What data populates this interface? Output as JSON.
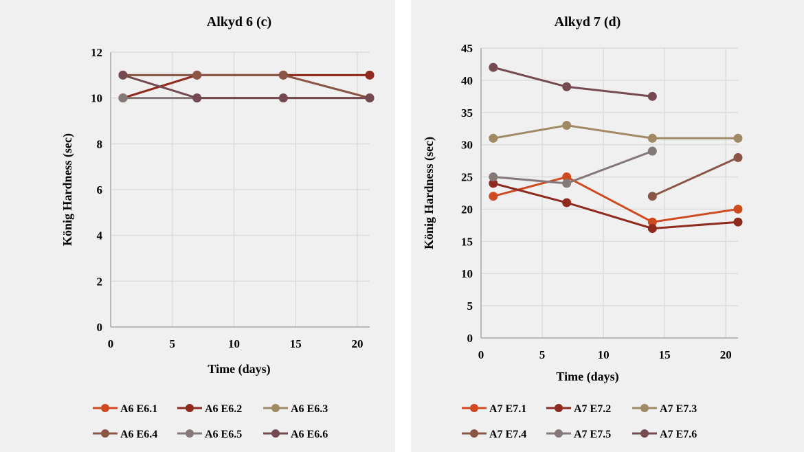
{
  "chart_data": [
    {
      "type": "line",
      "title": "Alkyd 6 (c)",
      "xlabel": "Time (days)",
      "ylabel": "König Hardness (sec)",
      "xlim": [
        0,
        21
      ],
      "ylim": [
        0,
        12
      ],
      "xticks": [
        0,
        5,
        10,
        15,
        20
      ],
      "yticks": [
        0,
        2,
        4,
        6,
        8,
        10,
        12
      ],
      "grid": true,
      "legend": "bottom",
      "x": [
        1,
        7,
        14,
        21
      ],
      "series": [
        {
          "name": "A6 E6.1",
          "color": "#d04a20",
          "values": [
            10,
            11,
            11,
            11
          ]
        },
        {
          "name": "A6 E6.2",
          "color": "#8e2a1e",
          "values": [
            10,
            11,
            11,
            11
          ]
        },
        {
          "name": "A6 E6.3",
          "color": "#a08a64",
          "values": [
            11,
            11,
            11,
            10
          ]
        },
        {
          "name": "A6 E6.4",
          "color": "#8a5545",
          "values": [
            11,
            11,
            11,
            10
          ]
        },
        {
          "name": "A6 E6.5",
          "color": "#857878",
          "values": [
            10,
            10,
            10,
            10
          ]
        },
        {
          "name": "A6 E6.6",
          "color": "#744a50",
          "values": [
            11,
            10,
            10,
            10
          ]
        }
      ]
    },
    {
      "type": "line",
      "title": "Alkyd 7 (d)",
      "xlabel": "Time (days)",
      "ylabel": "König Hardness (sec)",
      "xlim": [
        0,
        21
      ],
      "ylim": [
        0,
        45
      ],
      "xticks": [
        0,
        5,
        10,
        15,
        20
      ],
      "yticks": [
        0,
        5,
        10,
        15,
        20,
        25,
        30,
        35,
        40,
        45
      ],
      "grid": true,
      "legend": "bottom",
      "x": [
        1,
        7,
        14,
        21
      ],
      "series": [
        {
          "name": "A7 E7.1",
          "color": "#d04a20",
          "values": [
            22,
            25,
            18,
            20
          ]
        },
        {
          "name": "A7 E7.2",
          "color": "#8e2a1e",
          "values": [
            24,
            21,
            17,
            18
          ]
        },
        {
          "name": "A7 E7.3",
          "color": "#a08a64",
          "values": [
            31,
            33,
            31,
            31
          ]
        },
        {
          "name": "A7 E7.4",
          "color": "#8a5545",
          "values": [
            null,
            null,
            22,
            28
          ]
        },
        {
          "name": "A7 E7.5",
          "color": "#857878",
          "values": [
            25,
            24,
            29,
            null
          ]
        },
        {
          "name": "A7 E7.6",
          "color": "#744a50",
          "values": [
            42,
            39,
            37.5,
            null
          ]
        }
      ]
    }
  ]
}
